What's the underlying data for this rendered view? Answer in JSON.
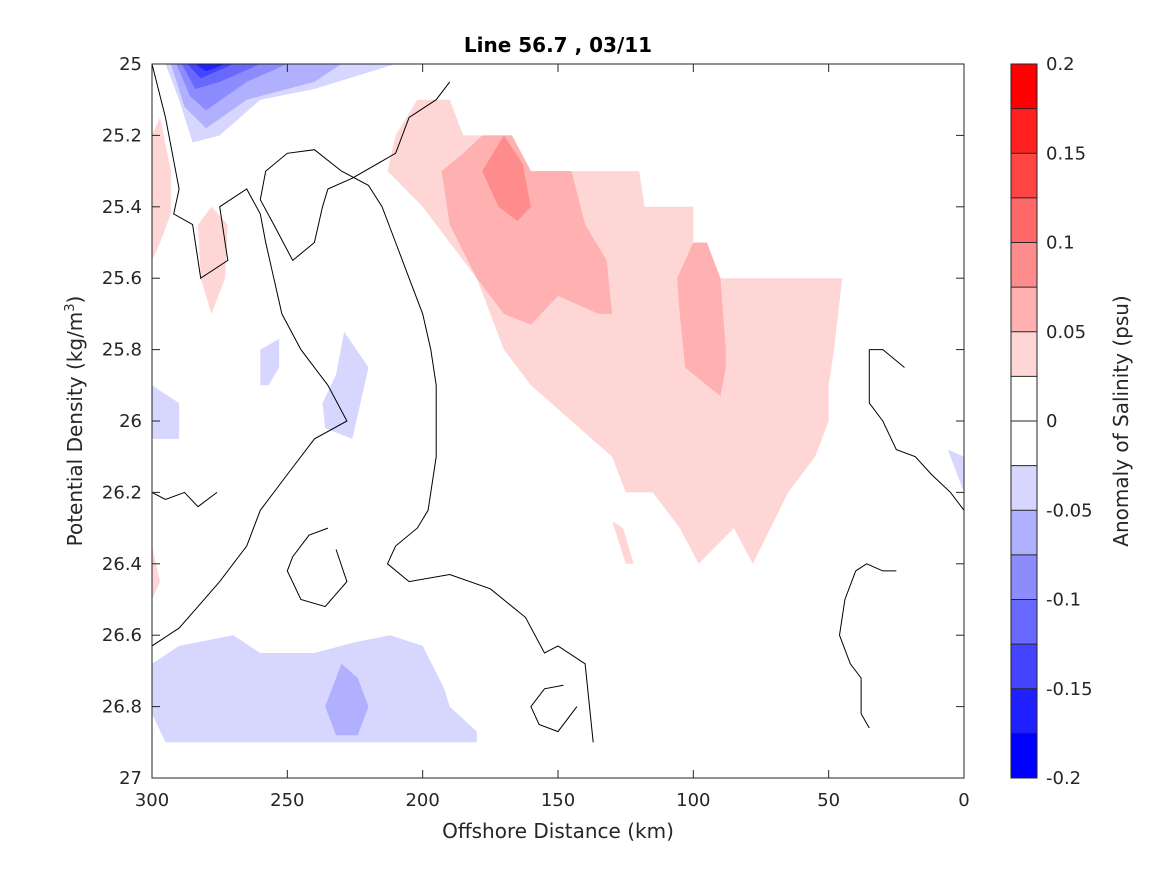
{
  "chart_data": {
    "type": "contour",
    "title": "Line 56.7 , 03/11",
    "xlabel": "Offshore Distance (km)",
    "ylabel_main": "Potential Density (kg/m",
    "ylabel_sup": "3",
    "ylabel_close": ")",
    "xlim": [
      300,
      0
    ],
    "ylim": [
      25,
      27
    ],
    "xticks": [
      300,
      250,
      200,
      150,
      100,
      50,
      0
    ],
    "xtick_labels": [
      "300",
      "250",
      "200",
      "150",
      "100",
      "50",
      "0"
    ],
    "yticks": [
      25,
      25.2,
      25.4,
      25.6,
      25.8,
      26,
      26.2,
      26.4,
      26.6,
      26.8,
      27
    ],
    "ytick_labels": [
      "25",
      "25.2",
      "25.4",
      "25.6",
      "25.8",
      "26",
      "26.2",
      "26.4",
      "26.6",
      "26.8",
      "27"
    ],
    "colorbar": {
      "label": "Anomaly of Salinity (psu)",
      "levels": [
        -0.2,
        -0.175,
        -0.15,
        -0.125,
        -0.1,
        -0.075,
        -0.05,
        -0.025,
        0,
        0.025,
        0.05,
        0.075,
        0.1,
        0.125,
        0.15,
        0.175,
        0.2
      ],
      "colors": [
        "#0000ff",
        "#2020ff",
        "#4444ff",
        "#6868ff",
        "#8c8cff",
        "#b0b0ff",
        "#d6d6ff",
        "#ffffff",
        "#ffffff",
        "#ffd6d6",
        "#ffb0b0",
        "#ff8c8c",
        "#ff6868",
        "#ff4444",
        "#ff2020",
        "#ff0000"
      ],
      "ticks": [
        -0.2,
        -0.15,
        -0.1,
        -0.05,
        0,
        0.05,
        0.1,
        0.15,
        0.2
      ],
      "tick_labels": [
        "-0.2",
        "-0.15",
        "-0.1",
        "-0.05",
        "0",
        "0.05",
        "0.1",
        "0.15",
        "0.2"
      ]
    },
    "filled_regions": [
      {
        "name": "positive anomaly core",
        "level": 0.025,
        "points": [
          [
            213,
            25.3
          ],
          [
            210,
            25.2
          ],
          [
            202,
            25.1
          ],
          [
            190,
            25.1
          ],
          [
            185,
            25.2
          ],
          [
            172,
            25.2
          ],
          [
            167,
            25.2
          ],
          [
            160,
            25.3
          ],
          [
            140,
            25.3
          ],
          [
            120,
            25.3
          ],
          [
            118,
            25.4
          ],
          [
            100,
            25.4
          ],
          [
            100,
            25.6
          ],
          [
            45,
            25.6
          ],
          [
            48,
            25.8
          ],
          [
            50,
            25.9
          ],
          [
            50,
            26
          ],
          [
            55,
            26.1
          ],
          [
            65,
            26.2
          ],
          [
            78,
            26.4
          ],
          [
            85,
            26.3
          ],
          [
            98,
            26.4
          ],
          [
            105,
            26.3
          ],
          [
            115,
            26.2
          ],
          [
            125,
            26.2
          ],
          [
            130,
            26.1
          ],
          [
            145,
            26
          ],
          [
            160,
            25.9
          ],
          [
            170,
            25.8
          ],
          [
            180,
            25.6
          ],
          [
            190,
            25.5
          ],
          [
            200,
            25.4
          ]
        ]
      },
      {
        "name": "positive lobe A",
        "level": 0.025,
        "points": [
          [
            300,
            25.2
          ],
          [
            297,
            25.15
          ],
          [
            293,
            25.3
          ],
          [
            293,
            25.42
          ],
          [
            297,
            25.5
          ],
          [
            300,
            25.55
          ]
        ]
      },
      {
        "name": "positive lobe B",
        "level": 0.025,
        "points": [
          [
            278,
            25.4
          ],
          [
            283,
            25.45
          ],
          [
            282,
            25.6
          ],
          [
            278,
            25.7
          ],
          [
            273,
            25.6
          ],
          [
            272,
            25.45
          ]
        ]
      },
      {
        "name": "positive lobe C",
        "level": 0.025,
        "points": [
          [
            300,
            26.35
          ],
          [
            297,
            26.45
          ],
          [
            300,
            26.5
          ]
        ]
      },
      {
        "name": "positive lobe D",
        "level": 0.025,
        "points": [
          [
            130,
            26.28
          ],
          [
            126,
            26.3
          ],
          [
            122,
            26.4
          ],
          [
            125,
            26.4
          ]
        ]
      },
      {
        "name": "positive level 2 region 1",
        "level": 0.05,
        "points": [
          [
            178,
            25.2
          ],
          [
            167,
            25.2
          ],
          [
            160,
            25.3
          ],
          [
            145,
            25.3
          ],
          [
            140,
            25.45
          ],
          [
            132,
            25.55
          ],
          [
            130,
            25.7
          ],
          [
            135,
            25.7
          ],
          [
            150,
            25.65
          ],
          [
            160,
            25.73
          ],
          [
            170,
            25.7
          ],
          [
            180,
            25.6
          ],
          [
            190,
            25.45
          ],
          [
            193,
            25.3
          ],
          [
            185,
            25.25
          ]
        ]
      },
      {
        "name": "positive level 2 region 2",
        "level": 0.05,
        "points": [
          [
            100,
            25.5
          ],
          [
            95,
            25.5
          ],
          [
            90,
            25.6
          ],
          [
            88,
            25.8
          ],
          [
            88,
            25.85
          ],
          [
            90,
            25.93
          ],
          [
            95,
            25.9
          ],
          [
            103,
            25.85
          ],
          [
            105,
            25.7
          ],
          [
            106,
            25.6
          ]
        ]
      },
      {
        "name": "positive level 3 region",
        "level": 0.075,
        "points": [
          [
            170,
            25.2
          ],
          [
            163,
            25.28
          ],
          [
            160,
            25.4
          ],
          [
            165,
            25.44
          ],
          [
            172,
            25.4
          ],
          [
            178,
            25.3
          ]
        ]
      },
      {
        "name": "negative top 1",
        "level": -0.025,
        "points": [
          [
            295,
            25
          ],
          [
            290,
            25.1
          ],
          [
            285,
            25.22
          ],
          [
            275,
            25.2
          ],
          [
            260,
            25.1
          ],
          [
            240,
            25.07
          ],
          [
            210,
            25
          ]
        ]
      },
      {
        "name": "negative top 2",
        "level": -0.05,
        "points": [
          [
            293,
            25
          ],
          [
            288,
            25.12
          ],
          [
            280,
            25.18
          ],
          [
            265,
            25.1
          ],
          [
            240,
            25.05
          ],
          [
            230,
            25
          ]
        ]
      },
      {
        "name": "negative top 3",
        "level": -0.075,
        "points": [
          [
            291,
            25
          ],
          [
            286,
            25.09
          ],
          [
            280,
            25.13
          ],
          [
            265,
            25.05
          ],
          [
            250,
            25
          ]
        ]
      },
      {
        "name": "negative top 4",
        "level": -0.1,
        "points": [
          [
            289,
            25
          ],
          [
            284,
            25.07
          ],
          [
            275,
            25.05
          ],
          [
            260,
            25
          ]
        ]
      },
      {
        "name": "negative top 5",
        "level": -0.125,
        "points": [
          [
            287,
            25
          ],
          [
            282,
            25.04
          ],
          [
            270,
            25
          ]
        ]
      },
      {
        "name": "negative top 6",
        "level": -0.15,
        "points": [
          [
            284,
            25
          ],
          [
            280,
            25.02
          ],
          [
            273,
            25
          ]
        ]
      },
      {
        "name": "negative small 1",
        "level": -0.025,
        "points": [
          [
            260,
            25.8
          ],
          [
            253,
            25.77
          ],
          [
            253,
            25.85
          ],
          [
            257,
            25.9
          ],
          [
            260,
            25.9
          ]
        ]
      },
      {
        "name": "negative small 2",
        "level": -0.025,
        "points": [
          [
            229,
            25.75
          ],
          [
            232,
            25.87
          ],
          [
            237,
            25.95
          ],
          [
            236,
            26.02
          ],
          [
            226,
            26.05
          ],
          [
            220,
            25.85
          ]
        ]
      },
      {
        "name": "negative small 3",
        "level": -0.025,
        "points": [
          [
            300,
            25.9
          ],
          [
            290,
            25.95
          ],
          [
            290,
            26.05
          ],
          [
            300,
            26.05
          ]
        ]
      },
      {
        "name": "negative small 4",
        "level": -0.025,
        "points": [
          [
            6,
            26.08
          ],
          [
            0,
            26.1
          ],
          [
            0,
            26.2
          ]
        ]
      },
      {
        "name": "negative bottom 1",
        "level": -0.025,
        "points": [
          [
            300,
            26.68
          ],
          [
            290,
            26.63
          ],
          [
            270,
            26.6
          ],
          [
            260,
            26.65
          ],
          [
            240,
            26.65
          ],
          [
            225,
            26.62
          ],
          [
            212,
            26.6
          ],
          [
            200,
            26.63
          ],
          [
            192,
            26.75
          ],
          [
            190,
            26.8
          ],
          [
            180,
            26.87
          ],
          [
            180,
            26.9
          ],
          [
            185,
            26.9
          ],
          [
            185,
            26.9
          ],
          [
            295,
            26.9
          ],
          [
            300,
            26.82
          ]
        ]
      },
      {
        "name": "negative bottom 2",
        "level": -0.05,
        "points": [
          [
            230,
            26.68
          ],
          [
            224,
            26.72
          ],
          [
            220,
            26.8
          ],
          [
            224,
            26.88
          ],
          [
            232,
            26.88
          ],
          [
            236,
            26.8
          ]
        ]
      }
    ],
    "zero_contours": [
      {
        "points": [
          [
            300,
            25
          ],
          [
            295,
            25.15
          ],
          [
            290,
            25.35
          ],
          [
            292,
            25.42
          ],
          [
            285,
            25.45
          ],
          [
            282,
            25.6
          ],
          [
            272,
            25.55
          ],
          [
            275,
            25.4
          ],
          [
            265,
            25.35
          ],
          [
            260,
            25.42
          ],
          [
            258,
            25.5
          ],
          [
            255,
            25.6
          ],
          [
            252,
            25.7
          ],
          [
            245,
            25.8
          ],
          [
            235,
            25.9
          ],
          [
            228,
            26
          ],
          [
            240,
            26.05
          ],
          [
            250,
            26.15
          ],
          [
            260,
            26.25
          ],
          [
            265,
            26.35
          ],
          [
            275,
            26.45
          ],
          [
            283,
            26.52
          ],
          [
            290,
            26.58
          ],
          [
            300,
            26.63
          ]
        ]
      },
      {
        "points": [
          [
            190,
            25.05
          ],
          [
            195,
            25.1
          ],
          [
            205,
            25.15
          ],
          [
            210,
            25.25
          ],
          [
            226,
            25.32
          ],
          [
            235,
            25.35
          ],
          [
            237,
            25.4
          ],
          [
            240,
            25.5
          ],
          [
            248,
            25.55
          ],
          [
            255,
            25.45
          ],
          [
            260,
            25.38
          ],
          [
            258,
            25.3
          ],
          [
            250,
            25.25
          ],
          [
            240,
            25.24
          ],
          [
            230,
            25.3
          ],
          [
            220,
            25.34
          ],
          [
            215,
            25.4
          ],
          [
            210,
            25.5
          ],
          [
            205,
            25.6
          ],
          [
            200,
            25.7
          ],
          [
            197,
            25.8
          ],
          [
            195,
            25.9
          ],
          [
            195,
            26.1
          ],
          [
            198,
            26.25
          ],
          [
            202,
            26.3
          ],
          [
            210,
            26.35
          ],
          [
            213,
            26.4
          ],
          [
            205,
            26.45
          ],
          [
            190,
            26.43
          ],
          [
            175,
            26.47
          ],
          [
            162,
            26.55
          ],
          [
            155,
            26.65
          ],
          [
            150,
            26.63
          ],
          [
            140,
            26.68
          ],
          [
            137,
            26.9
          ]
        ]
      },
      {
        "points": [
          [
            235,
            26.3
          ],
          [
            242,
            26.32
          ],
          [
            248,
            26.38
          ],
          [
            250,
            26.42
          ],
          [
            245,
            26.5
          ],
          [
            236,
            26.52
          ],
          [
            228,
            26.45
          ],
          [
            232,
            26.36
          ]
        ]
      },
      {
        "points": [
          [
            148,
            26.74
          ],
          [
            155,
            26.75
          ],
          [
            160,
            26.8
          ],
          [
            157,
            26.85
          ],
          [
            150,
            26.87
          ],
          [
            143,
            26.8
          ]
        ]
      },
      {
        "points": [
          [
            300,
            26.2
          ],
          [
            295,
            26.22
          ],
          [
            288,
            26.2
          ],
          [
            283,
            26.24
          ],
          [
            276,
            26.2
          ]
        ]
      },
      {
        "points": [
          [
            35,
            25.8
          ],
          [
            30,
            25.8
          ],
          [
            22,
            25.85
          ]
        ]
      },
      {
        "points": [
          [
            35,
            25.8
          ],
          [
            35,
            25.95
          ],
          [
            30,
            26
          ],
          [
            25,
            26.08
          ],
          [
            18,
            26.1
          ],
          [
            12,
            26.15
          ],
          [
            5,
            26.2
          ],
          [
            0,
            26.25
          ]
        ]
      },
      {
        "points": [
          [
            40,
            26.42
          ],
          [
            36,
            26.4
          ],
          [
            30,
            26.42
          ],
          [
            25,
            26.42
          ]
        ]
      },
      {
        "points": [
          [
            40,
            26.42
          ],
          [
            44,
            26.5
          ],
          [
            46,
            26.6
          ],
          [
            42,
            26.68
          ],
          [
            38,
            26.72
          ],
          [
            38,
            26.82
          ],
          [
            35,
            26.86
          ]
        ]
      }
    ],
    "grid": false,
    "legend": "colorbar-right"
  }
}
